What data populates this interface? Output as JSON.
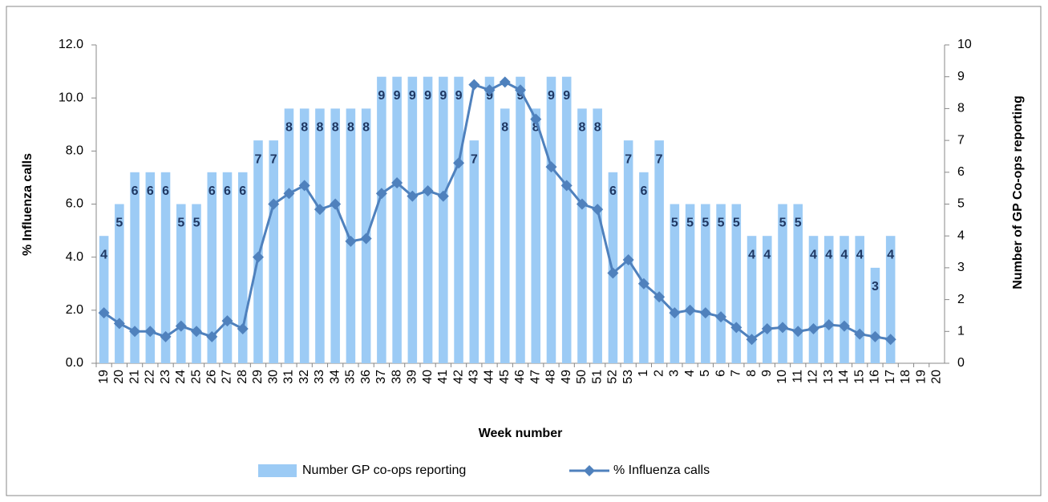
{
  "chart_data": {
    "type": "bar-line",
    "x_label": "Week number",
    "y_label": "% Influenza calls",
    "y2_label": "Number of GP Co-ops reporting",
    "categories": [
      "19",
      "20",
      "21",
      "22",
      "23",
      "24",
      "25",
      "26",
      "27",
      "28",
      "29",
      "30",
      "31",
      "32",
      "33",
      "34",
      "35",
      "36",
      "37",
      "38",
      "39",
      "40",
      "41",
      "42",
      "43",
      "44",
      "45",
      "46",
      "47",
      "48",
      "49",
      "50",
      "51",
      "52",
      "53",
      "1",
      "2",
      "3",
      "4",
      "5",
      "6",
      "7",
      "8",
      "9",
      "10",
      "11",
      "12",
      "13",
      "14",
      "15",
      "16",
      "17",
      "18",
      "19",
      "20"
    ],
    "series": [
      {
        "name": "Number GP co-ops reporting",
        "type": "bar",
        "axis": "y2",
        "color": "#9ccbf5",
        "show_value_labels": true,
        "values": [
          4,
          5,
          6,
          6,
          6,
          5,
          5,
          6,
          6,
          6,
          7,
          7,
          8,
          8,
          8,
          8,
          8,
          8,
          9,
          9,
          9,
          9,
          9,
          9,
          7,
          9,
          8,
          9,
          8,
          9,
          9,
          8,
          8,
          6,
          7,
          6,
          7,
          5,
          5,
          5,
          5,
          5,
          4,
          4,
          5,
          5,
          4,
          4,
          4,
          4,
          3,
          4,
          null,
          null,
          null
        ]
      },
      {
        "name": "% Influenza calls",
        "type": "line",
        "color": "#4f81bd",
        "values": [
          1.9,
          1.5,
          1.2,
          1.2,
          1.0,
          1.4,
          1.2,
          1.0,
          1.6,
          1.3,
          4.0,
          6.0,
          6.4,
          6.7,
          5.8,
          6.0,
          4.6,
          4.7,
          6.4,
          6.8,
          6.3,
          6.5,
          6.3,
          7.55,
          10.5,
          10.3,
          10.6,
          10.3,
          9.2,
          7.4,
          6.7,
          6.0,
          5.8,
          3.4,
          3.9,
          3.0,
          2.5,
          1.9,
          2.0,
          1.9,
          1.75,
          1.35,
          0.9,
          1.3,
          1.35,
          1.2,
          1.3,
          1.45,
          1.4,
          1.1,
          1.0,
          0.9,
          null,
          null,
          null
        ]
      }
    ],
    "ylim": [
      0,
      12
    ],
    "yticks": [
      {
        "value": 0,
        "label": "0.0"
      },
      {
        "value": 2,
        "label": "2.0"
      },
      {
        "value": 4,
        "label": "4.0"
      },
      {
        "value": 6,
        "label": "6.0"
      },
      {
        "value": 8,
        "label": "8.0"
      },
      {
        "value": 10,
        "label": "10.0"
      },
      {
        "value": 12,
        "label": "12.0"
      }
    ],
    "y2lim": [
      0,
      10
    ],
    "y2ticks": [
      0,
      1,
      2,
      3,
      4,
      5,
      6,
      7,
      8,
      9,
      10
    ],
    "legend": "bottom"
  }
}
